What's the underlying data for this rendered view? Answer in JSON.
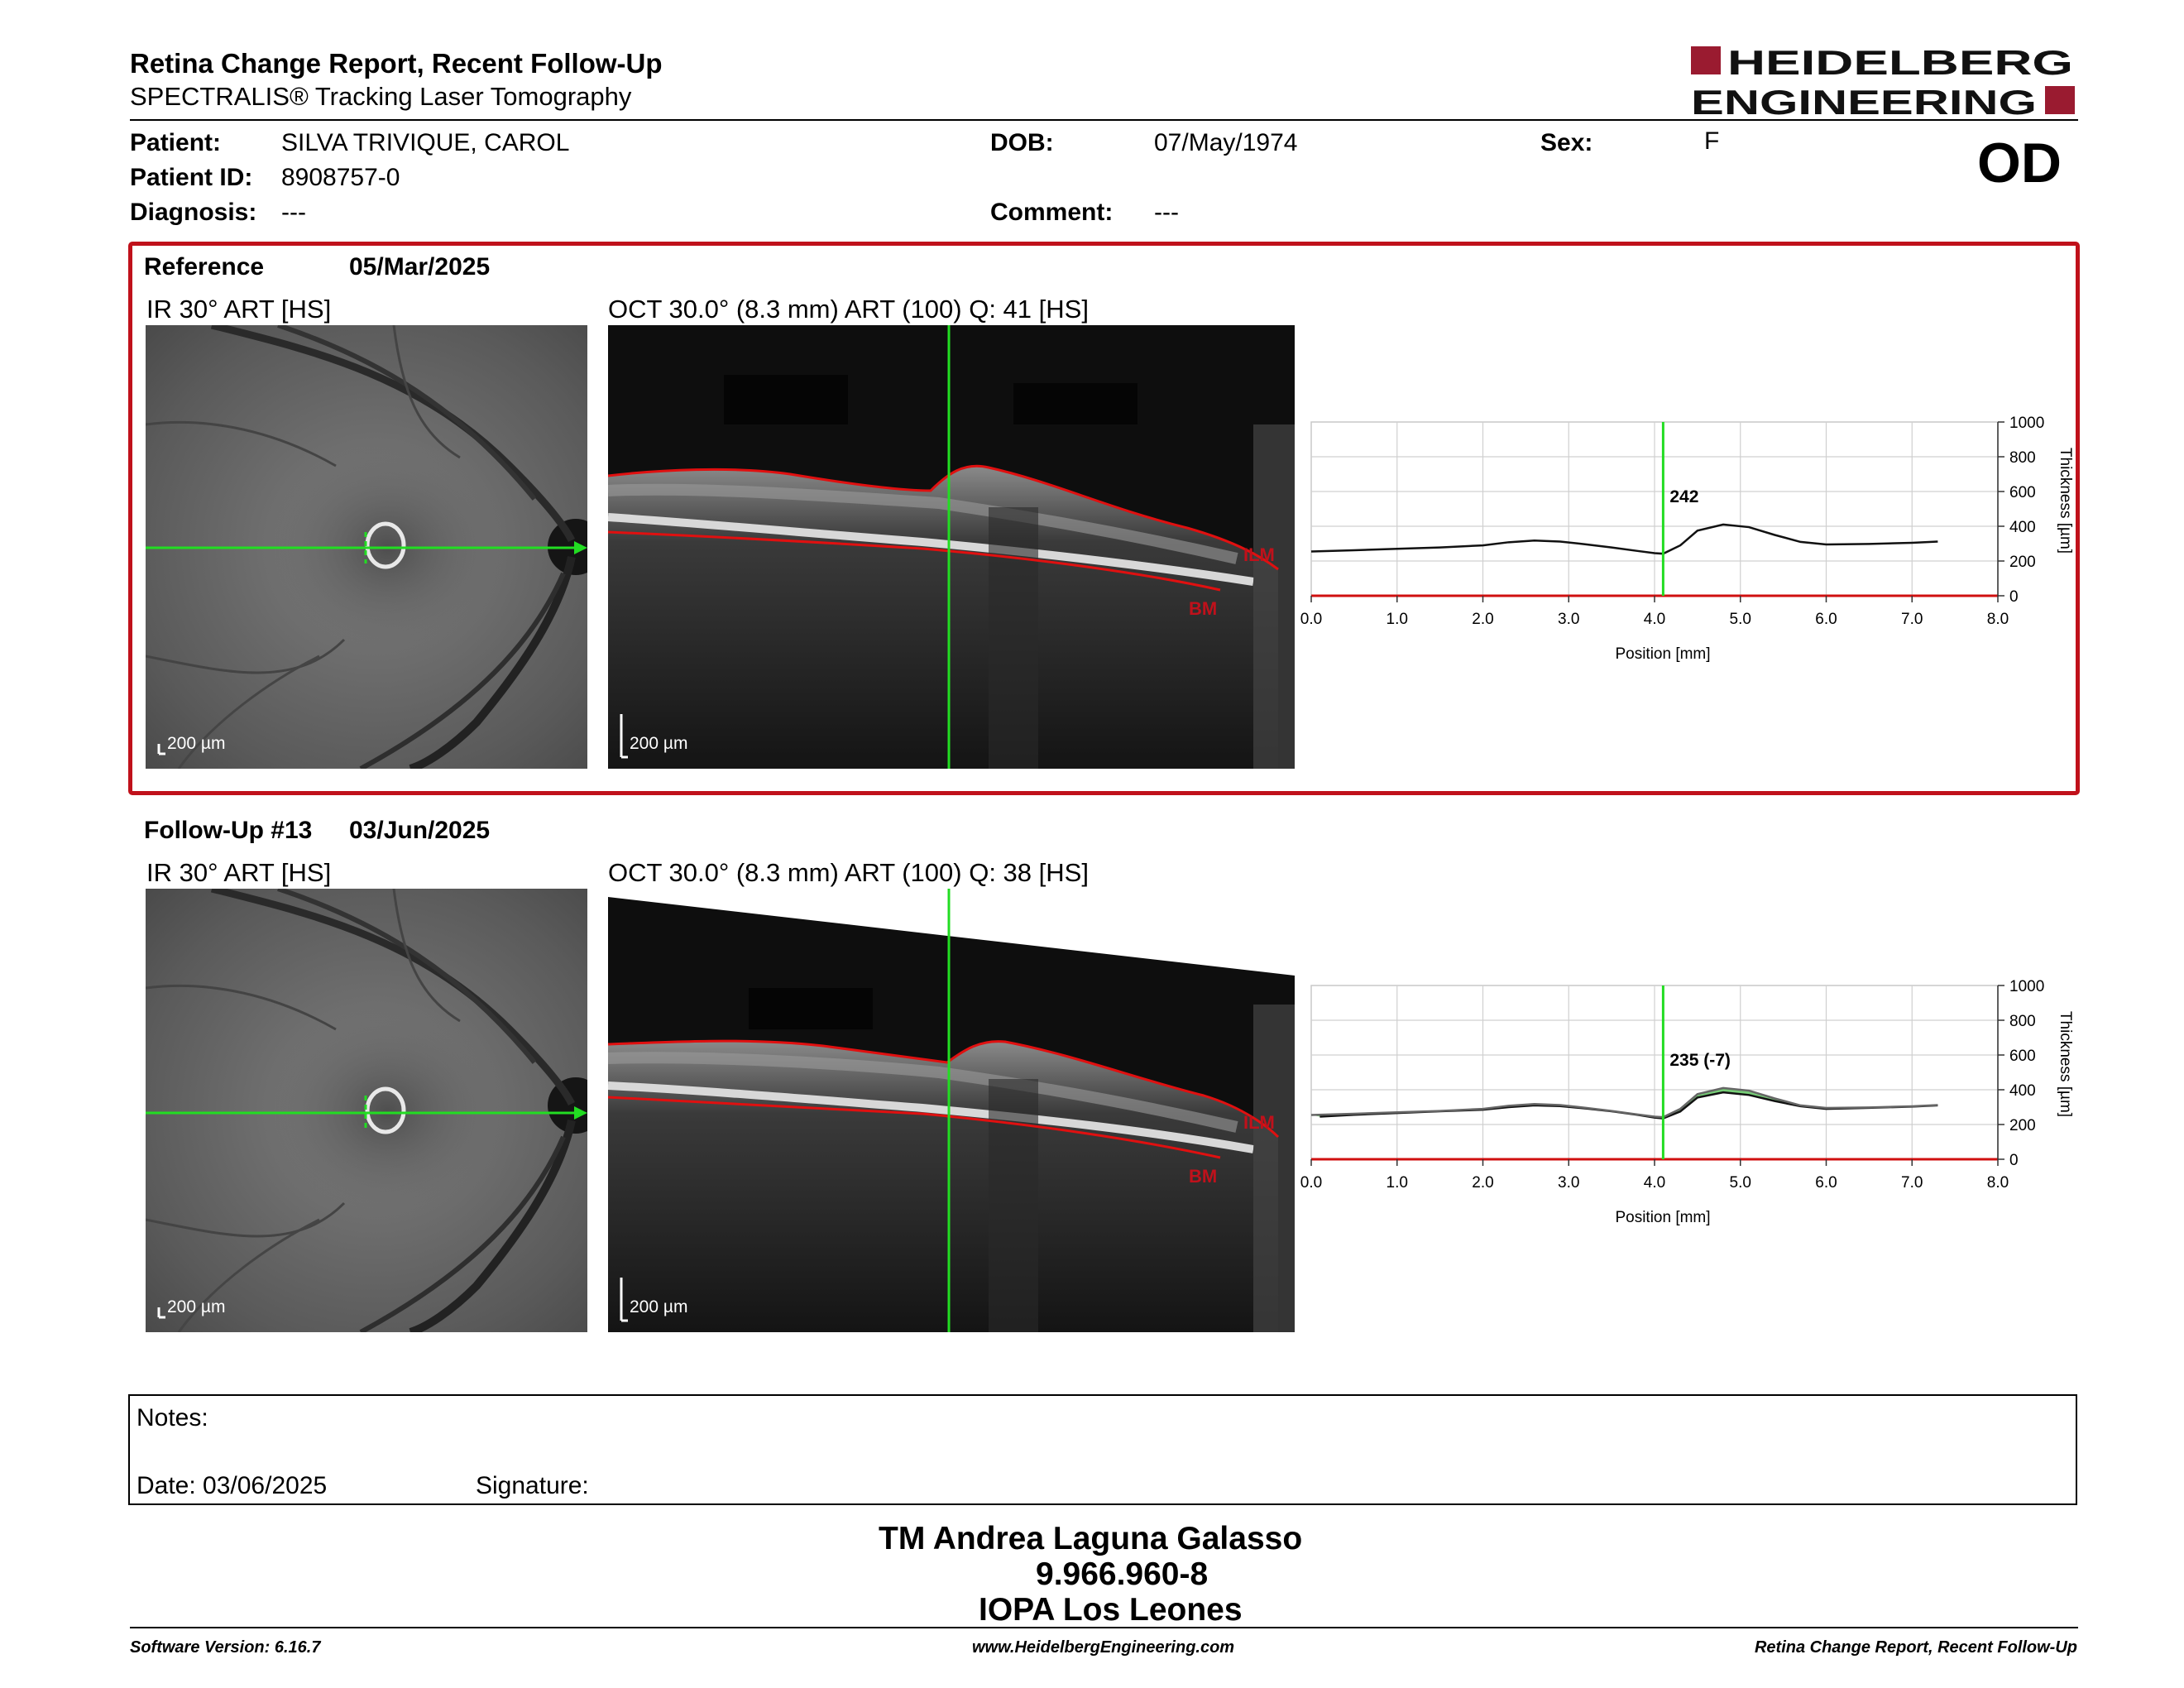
{
  "report": {
    "title": "Retina Change Report, Recent Follow-Up",
    "subtitle": "SPECTRALIS® Tracking Laser Tomography",
    "logo_line1": "HEIDELBERG",
    "logo_line2": "ENGINEERING",
    "eye": "OD"
  },
  "patient": {
    "patient_label": "Patient:",
    "patient_name": "SILVA TRIVIQUE, CAROL",
    "id_label": "Patient ID:",
    "id": "8908757-0",
    "diagnosis_label": "Diagnosis:",
    "diagnosis": "---",
    "dob_label": "DOB:",
    "dob": "07/May/1974",
    "comment_label": "Comment:",
    "comment": "---",
    "sex_label": "Sex:",
    "sex": "F"
  },
  "reference": {
    "label": "Reference",
    "date": "05/Mar/2025",
    "ir_title": "IR 30° ART [HS]",
    "oct_title": "OCT 30.0° (8.3 mm) ART (100) Q: 41 [HS]",
    "ir_scale": "200 µm",
    "oct_scale": "200 µm",
    "ilm_label": "ILM",
    "bm_label": "BM",
    "marker_label": "242"
  },
  "followup": {
    "label": "Follow-Up #13",
    "date": "03/Jun/2025",
    "ir_title": "IR 30° ART [HS]",
    "oct_title": "OCT 30.0° (8.3 mm) ART (100) Q: 38 [HS]",
    "ir_scale": "200 µm",
    "oct_scale": "200 µm",
    "ilm_label": "ILM",
    "bm_label": "BM",
    "marker_label": "235 (-7)"
  },
  "chart_data": [
    {
      "type": "line",
      "xlabel": "Position [mm]",
      "ylabel": "Thickness [µm]",
      "xlim": [
        0,
        8
      ],
      "ylim": [
        0,
        1000
      ],
      "xticks": [
        "0.0",
        "1.0",
        "2.0",
        "3.0",
        "4.0",
        "5.0",
        "6.0",
        "7.0",
        "8.0"
      ],
      "yticks": [
        "0",
        "200",
        "400",
        "600",
        "800",
        "1000"
      ],
      "grid": true,
      "marker_x": 4.1,
      "marker_label": "242",
      "series": [
        {
          "x": [
            0.0,
            0.5,
            1.0,
            1.5,
            2.0,
            2.3,
            2.6,
            2.9,
            3.2,
            3.5,
            3.8,
            4.0,
            4.1,
            4.3,
            4.5,
            4.8,
            5.1,
            5.4,
            5.7,
            6.0,
            6.5,
            7.0,
            7.3
          ],
          "y": [
            255,
            262,
            270,
            278,
            290,
            308,
            318,
            312,
            296,
            278,
            258,
            245,
            242,
            290,
            375,
            410,
            395,
            350,
            310,
            295,
            298,
            305,
            312
          ]
        }
      ]
    },
    {
      "type": "line",
      "xlabel": "Position [mm]",
      "ylabel": "Thickness [µm]",
      "xlim": [
        0,
        8
      ],
      "ylim": [
        0,
        1000
      ],
      "xticks": [
        "0.0",
        "1.0",
        "2.0",
        "3.0",
        "4.0",
        "5.0",
        "6.0",
        "7.0",
        "8.0"
      ],
      "yticks": [
        "0",
        "200",
        "400",
        "600",
        "800",
        "1000"
      ],
      "grid": true,
      "marker_x": 4.1,
      "marker_label": "235 (-7)",
      "series": [
        {
          "x": [
            0.1,
            0.5,
            1.0,
            1.5,
            2.0,
            2.3,
            2.6,
            2.9,
            3.2,
            3.5,
            3.8,
            4.0,
            4.1,
            4.3,
            4.5,
            4.8,
            5.1,
            5.4,
            5.7,
            6.0,
            6.5,
            7.0,
            7.3
          ],
          "y": [
            245,
            256,
            266,
            276,
            285,
            300,
            310,
            306,
            292,
            276,
            256,
            240,
            235,
            275,
            355,
            385,
            370,
            335,
            305,
            290,
            296,
            303,
            310
          ]
        },
        {
          "x": [
            0.0,
            0.5,
            1.0,
            1.5,
            2.0,
            2.3,
            2.6,
            2.9,
            3.2,
            3.5,
            3.8,
            4.0,
            4.1,
            4.3,
            4.5,
            4.8,
            5.1,
            5.4,
            5.7,
            6.0,
            6.5,
            7.0,
            7.3
          ],
          "y": [
            255,
            262,
            270,
            278,
            290,
            308,
            318,
            312,
            296,
            278,
            258,
            245,
            242,
            290,
            375,
            410,
            395,
            350,
            310,
            295,
            298,
            305,
            312
          ]
        }
      ]
    }
  ],
  "notes": {
    "notes_label": "Notes:",
    "date_label": "Date: 03/06/2025",
    "signature_label": "Signature:"
  },
  "signatory": {
    "name": "TM Andrea Laguna Galasso",
    "id": "9.966.960-8",
    "org": "IOPA Los Leones"
  },
  "footer": {
    "version": "Software Version: 6.16.7",
    "website": "www.HeidelbergEngineering.com",
    "report_name": "Retina Change Report, Recent Follow-Up"
  },
  "colors": {
    "accent_red": "#c0111b",
    "scan_green": "#22dd22",
    "segmentation_red": "#e01010"
  }
}
